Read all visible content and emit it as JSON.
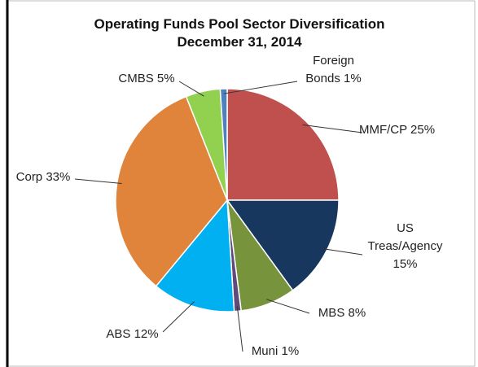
{
  "chart_data": {
    "type": "pie",
    "title": "Operating Funds Pool Sector Diversification",
    "subtitle": "December 31, 2014",
    "categories": [
      "MMF/CP",
      "US Treas/Agency",
      "MBS",
      "Muni",
      "ABS",
      "Corp",
      "CMBS",
      "Foreign Bonds"
    ],
    "values": [
      25,
      15,
      8,
      1,
      12,
      33,
      5,
      1
    ],
    "value_labels": [
      "25%",
      "15%",
      "8%",
      "1%",
      "12%",
      "33%",
      "5%",
      "1%"
    ],
    "colors": [
      "#c0504d",
      "#17375e",
      "#77933c",
      "#604a7b",
      "#00b0f0",
      "#e0843c",
      "#92d050",
      "#4f81bd"
    ]
  }
}
